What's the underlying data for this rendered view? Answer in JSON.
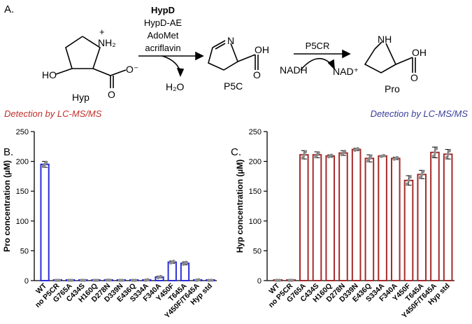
{
  "panelA": {
    "label": "A.",
    "enzyme_bold": "HypD",
    "cofactors": [
      "HypD-AE",
      "AdoMet",
      "acriflavin"
    ],
    "water": "H₂O",
    "p5cr": "P5CR",
    "nadh": "NADH",
    "nad": "NAD⁺",
    "compounds": {
      "hyp": "Hyp",
      "p5c": "P5C",
      "pro": "Pro",
      "ho": "HO",
      "nh2": "NH₂",
      "n": "N",
      "nh": "NH",
      "oh": "OH",
      "o": "O",
      "ominus": "O⁻",
      "plus": "+"
    },
    "detect_left": "Detection by LC-MS/MS",
    "detect_right": "Detection by LC-MS/MS",
    "detect_left_color": "#c0302b",
    "detect_right_color": "#3a3f9a"
  },
  "chart_data": [
    {
      "panel": "B.",
      "type": "bar",
      "ylabel": "Pro concentration (µM)",
      "ylim": [
        0,
        250
      ],
      "yticks": [
        0,
        50,
        100,
        150,
        200,
        250
      ],
      "bar_color": "#2b2fd6",
      "categories": [
        "WT",
        "no P5CR",
        "G765A",
        "C434S",
        "H160Q",
        "D278N",
        "D339N",
        "E436Q",
        "S334A",
        "F340A",
        "Y450F",
        "T645A",
        "Y450F/T645A",
        "Hyp std"
      ],
      "values": [
        195,
        0.5,
        0.5,
        0.5,
        0.5,
        0.8,
        0.5,
        0.5,
        1,
        6,
        31,
        29,
        1,
        0.5
      ],
      "errors": [
        5,
        0,
        0,
        0,
        0,
        0,
        0,
        0,
        0.5,
        1.5,
        2,
        2.5,
        0.5,
        0
      ]
    },
    {
      "panel": "C.",
      "type": "bar",
      "ylabel": "Hyp concentration (µM)",
      "ylim": [
        0,
        250
      ],
      "yticks": [
        0,
        50,
        100,
        150,
        200,
        250
      ],
      "bar_color": "#a52a2a",
      "categories": [
        "WT",
        "no P5CR",
        "G765A",
        "C434S",
        "H160Q",
        "D278N",
        "D339N",
        "E436Q",
        "S334A",
        "F340A",
        "Y450F",
        "T645A",
        "Y450F/T645A",
        "Hyp std"
      ],
      "values": [
        0.5,
        0.5,
        211,
        211,
        209,
        214,
        220,
        205,
        209,
        205,
        168,
        178,
        215,
        212
      ],
      "errors": [
        0,
        0,
        7,
        5,
        2,
        4,
        2,
        6,
        1,
        2,
        8,
        7,
        9,
        8
      ]
    }
  ]
}
